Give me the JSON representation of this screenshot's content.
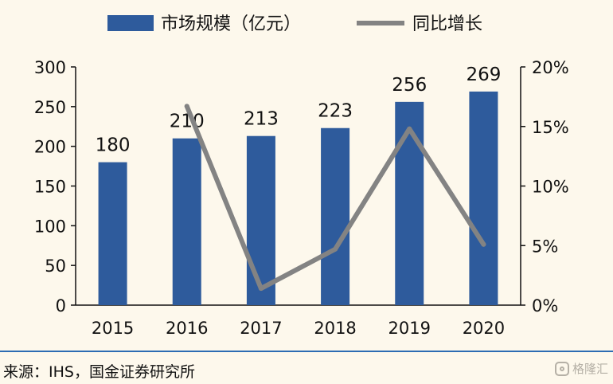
{
  "chart_data": {
    "type": "bar",
    "categories": [
      "2015",
      "2016",
      "2017",
      "2018",
      "2019",
      "2020"
    ],
    "series": [
      {
        "name": "市场规模（亿元）",
        "type": "bar",
        "axis": "left",
        "values": [
          180,
          210,
          213,
          223,
          256,
          269
        ],
        "labels": [
          "180",
          "210",
          "213",
          "223",
          "256",
          "269"
        ],
        "color": "#2e5b9c"
      },
      {
        "name": "同比增长",
        "type": "line",
        "axis": "right",
        "values": [
          null,
          16.7,
          1.4,
          4.7,
          14.8,
          5.1
        ],
        "color": "#838383"
      }
    ],
    "y_left": {
      "min": 0,
      "max": 300,
      "ticks": [
        0,
        50,
        100,
        150,
        200,
        250,
        300
      ],
      "tick_labels": [
        "0",
        "50",
        "100",
        "150",
        "200",
        "250",
        "300"
      ]
    },
    "y_right": {
      "min": 0,
      "max": 20,
      "ticks": [
        0,
        5,
        10,
        15,
        20
      ],
      "tick_labels": [
        "0%",
        "5%",
        "10%",
        "15%",
        "20%"
      ]
    },
    "legend_position": "top",
    "grid": false
  },
  "footer": {
    "source": "来源：IHS，国金证券研究所"
  },
  "watermark": {
    "text": "格隆汇"
  }
}
